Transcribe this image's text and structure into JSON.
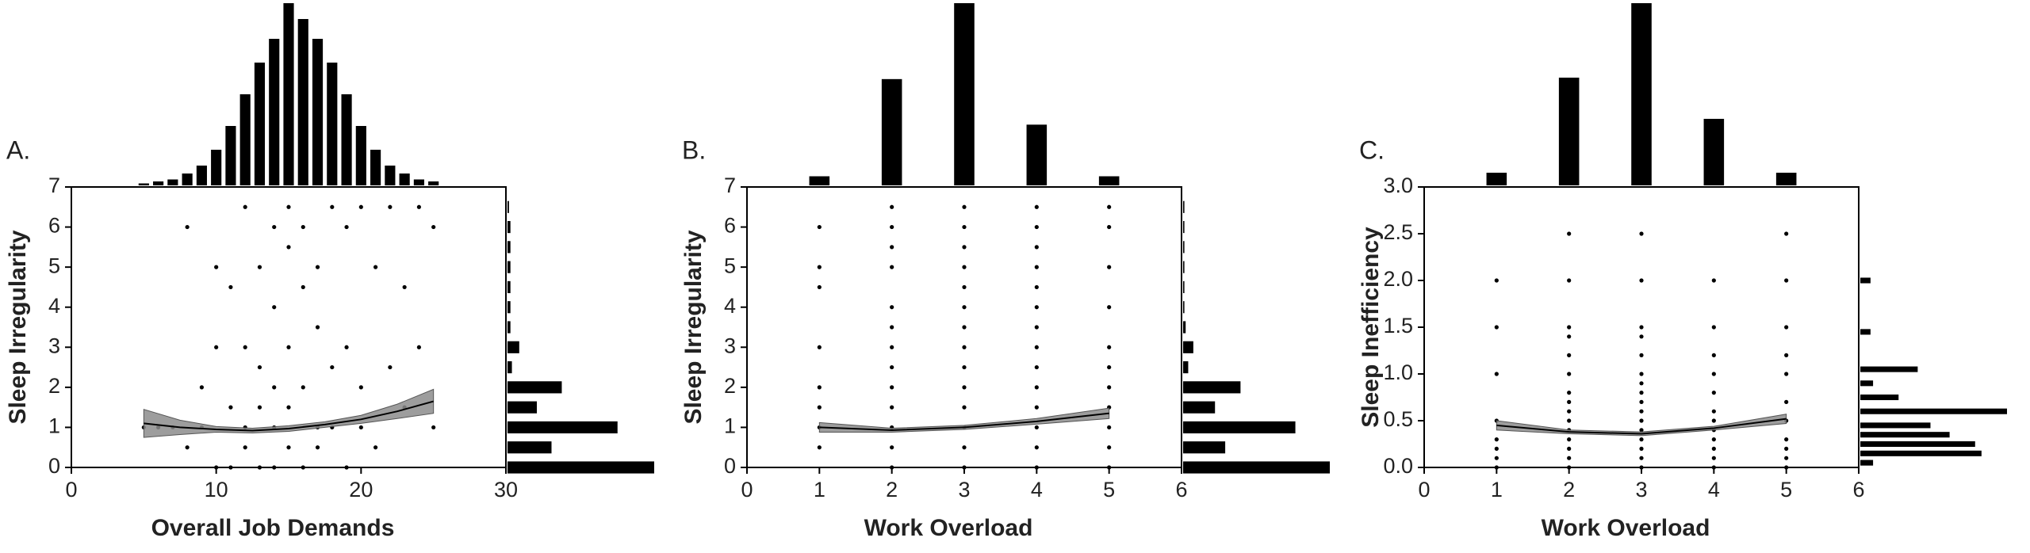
{
  "chart_data": [
    {
      "type": "scatter",
      "panel": "A.",
      "xlabel": "Overall Job Demands",
      "ylabel": "Sleep Irregularity",
      "xlim": [
        0,
        30
      ],
      "xticks": [
        0,
        10,
        20,
        30
      ],
      "ylim": [
        0,
        7
      ],
      "yticks": [
        0,
        1,
        2,
        3,
        4,
        5,
        6,
        7
      ],
      "color": "#000000",
      "band_color": "#8c8c8c",
      "x": [
        5,
        6,
        7,
        8,
        8,
        9,
        9,
        10,
        10,
        10,
        11,
        11,
        11,
        12,
        12,
        12,
        12,
        13,
        13,
        13,
        13,
        14,
        14,
        14,
        14,
        14,
        15,
        15,
        15,
        15,
        15,
        16,
        16,
        16,
        16,
        17,
        17,
        17,
        17,
        18,
        18,
        18,
        19,
        19,
        19,
        20,
        20,
        20,
        21,
        21,
        22,
        22,
        23,
        23,
        24,
        24,
        25,
        25
      ],
      "y": [
        1,
        1,
        1,
        6,
        0.5,
        2,
        1,
        5,
        3,
        0,
        4.5,
        1.5,
        0,
        6.5,
        3,
        1,
        0.5,
        5,
        2.5,
        1.5,
        0,
        6,
        4,
        2,
        1,
        0,
        6.5,
        5.5,
        3,
        1.5,
        0.5,
        6,
        4.5,
        2,
        0,
        5,
        3.5,
        1,
        0.5,
        6.5,
        2.5,
        1,
        6,
        3,
        0,
        6.5,
        2,
        1,
        5,
        0.5,
        6.5,
        2.5,
        4.5,
        1.5,
        6.5,
        3,
        6,
        1
      ],
      "fit": {
        "x": [
          5,
          7.5,
          10,
          12.5,
          15,
          17.5,
          20,
          22.5,
          25
        ],
        "y": [
          1.1,
          1.0,
          0.95,
          0.92,
          0.97,
          1.07,
          1.2,
          1.4,
          1.65
        ],
        "lower": [
          0.75,
          0.82,
          0.88,
          0.86,
          0.9,
          1.0,
          1.1,
          1.22,
          1.35
        ],
        "upper": [
          1.45,
          1.18,
          1.02,
          0.98,
          1.04,
          1.14,
          1.3,
          1.58,
          1.95
        ]
      },
      "top_hist": {
        "x": [
          5,
          6,
          7,
          8,
          9,
          10,
          11,
          12,
          13,
          14,
          15,
          16,
          17,
          18,
          19,
          20,
          21,
          22,
          23,
          24,
          25
        ],
        "counts": [
          1,
          2,
          3,
          6,
          10,
          18,
          30,
          46,
          62,
          74,
          92,
          84,
          74,
          62,
          46,
          30,
          18,
          10,
          6,
          3,
          2
        ]
      },
      "right_hist": {
        "y": [
          0,
          0.5,
          1,
          1.5,
          2,
          2.5,
          3,
          3.5,
          4,
          4.5,
          5,
          5.5,
          6,
          6.5
        ],
        "counts": [
          100,
          30,
          75,
          20,
          37,
          3,
          8,
          2,
          2,
          2,
          2,
          2,
          2,
          1
        ]
      }
    },
    {
      "type": "scatter",
      "panel": "B.",
      "xlabel": "Work Overload",
      "ylabel": "Sleep Irregularity",
      "xlim": [
        0,
        6
      ],
      "xticks": [
        0,
        1,
        2,
        3,
        4,
        5,
        6
      ],
      "ylim": [
        0,
        7
      ],
      "yticks": [
        0,
        1,
        2,
        3,
        4,
        5,
        6,
        7
      ],
      "color": "#000000",
      "band_color": "#8c8c8c",
      "x": [
        1,
        1,
        1,
        1,
        1,
        1,
        1,
        1,
        2,
        2,
        2,
        2,
        2,
        2,
        2,
        2,
        2,
        2,
        2,
        2,
        2,
        3,
        3,
        3,
        3,
        3,
        3,
        3,
        3,
        3,
        3,
        3,
        3,
        3,
        3,
        4,
        4,
        4,
        4,
        4,
        4,
        4,
        4,
        4,
        4,
        4,
        4,
        4,
        4,
        5,
        5,
        5,
        5,
        5,
        5,
        5,
        5,
        5,
        5,
        5
      ],
      "y": [
        0.5,
        1,
        1.5,
        2,
        3,
        4.5,
        5,
        6,
        0,
        0.5,
        1,
        1.5,
        2,
        2.5,
        3,
        3.5,
        4,
        5,
        5.5,
        6,
        6.5,
        0,
        0.5,
        1,
        1.5,
        2,
        2.5,
        3,
        3.5,
        4,
        4.5,
        5,
        5.5,
        6,
        6.5,
        0,
        0.5,
        1,
        1.5,
        2,
        2.5,
        3,
        3.5,
        4,
        4.5,
        5,
        5.5,
        6,
        6.5,
        0,
        0.5,
        1,
        1.5,
        2,
        2.5,
        3,
        4,
        5,
        6,
        6.5
      ],
      "fit": {
        "x": [
          1,
          2,
          3,
          4,
          5
        ],
        "y": [
          1.0,
          0.93,
          1.0,
          1.15,
          1.35
        ],
        "lower": [
          0.88,
          0.88,
          0.95,
          1.08,
          1.22
        ],
        "upper": [
          1.12,
          0.98,
          1.05,
          1.22,
          1.48
        ]
      },
      "top_hist": {
        "x": [
          1,
          2,
          3,
          4,
          5
        ],
        "counts": [
          6,
          70,
          120,
          40,
          6
        ]
      },
      "right_hist": {
        "y": [
          0,
          0.5,
          1,
          1.5,
          2,
          2.5,
          3,
          3.5,
          4,
          4.5,
          5,
          5.5,
          6,
          6.5
        ],
        "counts": [
          115,
          33,
          88,
          25,
          45,
          4,
          8,
          2,
          1,
          1,
          1,
          1,
          1,
          1
        ]
      }
    },
    {
      "type": "scatter",
      "panel": "C.",
      "xlabel": "Work Overload",
      "ylabel": "Sleep Inefficiency",
      "xlim": [
        0,
        6
      ],
      "xticks": [
        0,
        1,
        2,
        3,
        4,
        5,
        6
      ],
      "ylim": [
        0,
        3
      ],
      "yticks": [
        {
          "value": 0,
          "label": "0.0"
        },
        0.5,
        {
          "value": 1,
          "label": "1.0"
        },
        1.5,
        {
          "value": 2,
          "label": "2.0"
        },
        2.5,
        {
          "value": 3,
          "label": "3.0"
        }
      ],
      "color": "#000000",
      "band_color": "#8c8c8c",
      "x": [
        1,
        1,
        1,
        1,
        1,
        1,
        1,
        1,
        2,
        2,
        2,
        2,
        2,
        2,
        2,
        2,
        2,
        2,
        2,
        2,
        2,
        2,
        2,
        3,
        3,
        3,
        3,
        3,
        3,
        3,
        3,
        3,
        3,
        3,
        3,
        3,
        3,
        3,
        3,
        4,
        4,
        4,
        4,
        4,
        4,
        4,
        4,
        4,
        4,
        4,
        4,
        5,
        5,
        5,
        5,
        5,
        5,
        5,
        5,
        5,
        5,
        5
      ],
      "y": [
        0,
        0.1,
        0.2,
        0.3,
        0.5,
        1,
        1.5,
        2,
        0,
        0.1,
        0.2,
        0.3,
        0.4,
        0.5,
        0.6,
        0.7,
        0.8,
        1,
        1.2,
        1.4,
        1.5,
        2,
        2.5,
        0,
        0.1,
        0.2,
        0.3,
        0.4,
        0.5,
        0.6,
        0.7,
        0.8,
        0.9,
        1,
        1.2,
        1.4,
        1.5,
        2,
        2.5,
        0,
        0.1,
        0.2,
        0.3,
        0.4,
        0.5,
        0.6,
        0.8,
        1,
        1.2,
        1.5,
        2,
        0,
        0.1,
        0.2,
        0.3,
        0.5,
        0.7,
        1,
        1.2,
        1.5,
        2,
        2.5
      ],
      "fit": {
        "x": [
          1,
          2,
          3,
          4,
          5
        ],
        "y": [
          0.45,
          0.38,
          0.36,
          0.42,
          0.52
        ],
        "lower": [
          0.4,
          0.36,
          0.34,
          0.4,
          0.47
        ],
        "upper": [
          0.5,
          0.4,
          0.38,
          0.44,
          0.57
        ]
      },
      "top_hist": {
        "x": [
          1,
          2,
          3,
          4,
          5
        ],
        "counts": [
          8,
          68,
          115,
          42,
          8
        ]
      },
      "right_hist": {
        "y": [
          0.05,
          0.15,
          0.25,
          0.35,
          0.45,
          0.6,
          0.75,
          0.9,
          1.05,
          1.45,
          2.0
        ],
        "counts": [
          10,
          95,
          90,
          70,
          55,
          115,
          30,
          10,
          45,
          8,
          8
        ]
      }
    }
  ]
}
